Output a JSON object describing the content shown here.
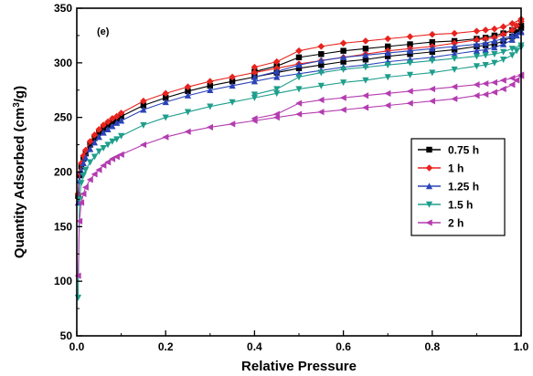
{
  "chart_data": {
    "type": "line",
    "annotation": "(e)",
    "xlabel": "Relative Pressure",
    "ylabel": "Quantity Adsorbed (cm³/g)",
    "ylabel_parts": {
      "main": "Quantity Adsorbed (cm",
      "sup": "3",
      "tail": "/g)"
    },
    "xlim": [
      0.0,
      1.0
    ],
    "ylim": [
      50,
      350
    ],
    "xticks": [
      0.0,
      0.2,
      0.4,
      0.6,
      0.8,
      1.0
    ],
    "xtick_labels": [
      "0.0",
      "0.2",
      "0.4",
      "0.6",
      "0.8",
      "1.0"
    ],
    "yticks": [
      50,
      100,
      150,
      200,
      250,
      300,
      350
    ],
    "ytick_labels": [
      "50",
      "100",
      "150",
      "200",
      "250",
      "300",
      "350"
    ],
    "grid": false,
    "legend_position": "right",
    "series": [
      {
        "name": "0.75 h",
        "color": "#000000",
        "marker": "square",
        "adsorption": [
          [
            0.003,
            178
          ],
          [
            0.006,
            197
          ],
          [
            0.01,
            205
          ],
          [
            0.015,
            212
          ],
          [
            0.02,
            217
          ],
          [
            0.03,
            225
          ],
          [
            0.04,
            231
          ],
          [
            0.05,
            236
          ],
          [
            0.06,
            240
          ],
          [
            0.07,
            243
          ],
          [
            0.08,
            246
          ],
          [
            0.09,
            248
          ],
          [
            0.1,
            251
          ],
          [
            0.15,
            261
          ],
          [
            0.2,
            268
          ],
          [
            0.25,
            274
          ],
          [
            0.3,
            279
          ],
          [
            0.35,
            283
          ],
          [
            0.4,
            287
          ],
          [
            0.45,
            291
          ],
          [
            0.5,
            295
          ],
          [
            0.55,
            298
          ],
          [
            0.6,
            301
          ],
          [
            0.65,
            303
          ],
          [
            0.7,
            306
          ],
          [
            0.75,
            308
          ],
          [
            0.8,
            310
          ],
          [
            0.85,
            312
          ],
          [
            0.9,
            315
          ],
          [
            0.92,
            316
          ],
          [
            0.94,
            317
          ],
          [
            0.96,
            320
          ],
          [
            0.98,
            324
          ],
          [
            0.99,
            328
          ],
          [
            1.0,
            332
          ]
        ],
        "desorption": [
          [
            1.0,
            334
          ],
          [
            0.98,
            330
          ],
          [
            0.96,
            327
          ],
          [
            0.94,
            325
          ],
          [
            0.92,
            323
          ],
          [
            0.9,
            322
          ],
          [
            0.85,
            320
          ],
          [
            0.8,
            319
          ],
          [
            0.75,
            317
          ],
          [
            0.7,
            315
          ],
          [
            0.65,
            313
          ],
          [
            0.6,
            311
          ],
          [
            0.55,
            308
          ],
          [
            0.5,
            305
          ],
          [
            0.45,
            297
          ],
          [
            0.4,
            292
          ]
        ]
      },
      {
        "name": "1 h",
        "color": "#e8231d",
        "marker": "diamond",
        "adsorption": [
          [
            0.003,
            180
          ],
          [
            0.006,
            199
          ],
          [
            0.01,
            208
          ],
          [
            0.015,
            215
          ],
          [
            0.02,
            220
          ],
          [
            0.03,
            228
          ],
          [
            0.04,
            234
          ],
          [
            0.05,
            239
          ],
          [
            0.06,
            243
          ],
          [
            0.07,
            246
          ],
          [
            0.08,
            249
          ],
          [
            0.09,
            251
          ],
          [
            0.1,
            254
          ],
          [
            0.15,
            265
          ],
          [
            0.2,
            272
          ],
          [
            0.25,
            278
          ],
          [
            0.3,
            283
          ],
          [
            0.35,
            287
          ],
          [
            0.4,
            291
          ],
          [
            0.45,
            295
          ],
          [
            0.5,
            299
          ],
          [
            0.55,
            302
          ],
          [
            0.6,
            305
          ],
          [
            0.65,
            308
          ],
          [
            0.7,
            311
          ],
          [
            0.75,
            313
          ],
          [
            0.8,
            315
          ],
          [
            0.85,
            318
          ],
          [
            0.9,
            321
          ],
          [
            0.92,
            322
          ],
          [
            0.94,
            323
          ],
          [
            0.96,
            326
          ],
          [
            0.98,
            330
          ],
          [
            0.99,
            334
          ],
          [
            1.0,
            338
          ]
        ],
        "desorption": [
          [
            1.0,
            340
          ],
          [
            0.98,
            336
          ],
          [
            0.96,
            333
          ],
          [
            0.94,
            331
          ],
          [
            0.92,
            330
          ],
          [
            0.9,
            329
          ],
          [
            0.85,
            327
          ],
          [
            0.8,
            326
          ],
          [
            0.75,
            324
          ],
          [
            0.7,
            322
          ],
          [
            0.65,
            320
          ],
          [
            0.6,
            318
          ],
          [
            0.55,
            315
          ],
          [
            0.5,
            311
          ],
          [
            0.45,
            301
          ],
          [
            0.4,
            296
          ]
        ]
      },
      {
        "name": "1.25 h",
        "color": "#2a43b8",
        "marker": "triangle-up",
        "adsorption": [
          [
            0.003,
            172
          ],
          [
            0.006,
            192
          ],
          [
            0.01,
            201
          ],
          [
            0.015,
            208
          ],
          [
            0.02,
            213
          ],
          [
            0.03,
            221
          ],
          [
            0.04,
            227
          ],
          [
            0.05,
            232
          ],
          [
            0.06,
            236
          ],
          [
            0.07,
            239
          ],
          [
            0.08,
            242
          ],
          [
            0.09,
            245
          ],
          [
            0.1,
            247
          ],
          [
            0.15,
            257
          ],
          [
            0.2,
            264
          ],
          [
            0.25,
            270
          ],
          [
            0.3,
            275
          ],
          [
            0.35,
            279
          ],
          [
            0.4,
            283
          ],
          [
            0.45,
            287
          ],
          [
            0.5,
            290
          ],
          [
            0.55,
            293
          ],
          [
            0.6,
            296
          ],
          [
            0.65,
            298
          ],
          [
            0.7,
            301
          ],
          [
            0.75,
            303
          ],
          [
            0.8,
            305
          ],
          [
            0.85,
            308
          ],
          [
            0.9,
            311
          ],
          [
            0.92,
            312
          ],
          [
            0.94,
            314
          ],
          [
            0.96,
            317
          ],
          [
            0.98,
            321
          ],
          [
            0.99,
            325
          ],
          [
            1.0,
            328
          ]
        ],
        "desorption": [
          [
            1.0,
            329
          ],
          [
            0.98,
            325
          ],
          [
            0.96,
            322
          ],
          [
            0.94,
            320
          ],
          [
            0.92,
            318
          ],
          [
            0.9,
            317
          ],
          [
            0.85,
            315
          ],
          [
            0.8,
            313
          ],
          [
            0.75,
            311
          ],
          [
            0.7,
            309
          ],
          [
            0.65,
            307
          ],
          [
            0.6,
            305
          ],
          [
            0.55,
            302
          ],
          [
            0.5,
            298
          ],
          [
            0.45,
            292
          ],
          [
            0.4,
            287
          ]
        ]
      },
      {
        "name": "1.5 h",
        "color": "#1e9e8c",
        "marker": "triangle-down",
        "adsorption": [
          [
            0.003,
            85
          ],
          [
            0.006,
            175
          ],
          [
            0.01,
            190
          ],
          [
            0.015,
            197
          ],
          [
            0.02,
            202
          ],
          [
            0.03,
            209
          ],
          [
            0.04,
            214
          ],
          [
            0.05,
            219
          ],
          [
            0.06,
            222
          ],
          [
            0.07,
            225
          ],
          [
            0.08,
            228
          ],
          [
            0.09,
            230
          ],
          [
            0.1,
            233
          ],
          [
            0.15,
            243
          ],
          [
            0.2,
            250
          ],
          [
            0.25,
            255
          ],
          [
            0.3,
            260
          ],
          [
            0.35,
            264
          ],
          [
            0.4,
            268
          ],
          [
            0.45,
            272
          ],
          [
            0.5,
            276
          ],
          [
            0.55,
            279
          ],
          [
            0.6,
            282
          ],
          [
            0.65,
            284
          ],
          [
            0.7,
            287
          ],
          [
            0.75,
            289
          ],
          [
            0.8,
            291
          ],
          [
            0.85,
            294
          ],
          [
            0.9,
            297
          ],
          [
            0.92,
            298
          ],
          [
            0.94,
            300
          ],
          [
            0.96,
            303
          ],
          [
            0.98,
            307
          ],
          [
            0.99,
            311
          ],
          [
            1.0,
            314
          ]
        ],
        "desorption": [
          [
            1.0,
            316
          ],
          [
            0.98,
            313
          ],
          [
            0.96,
            310
          ],
          [
            0.94,
            308
          ],
          [
            0.92,
            307
          ],
          [
            0.9,
            306
          ],
          [
            0.85,
            304
          ],
          [
            0.8,
            302
          ],
          [
            0.75,
            300
          ],
          [
            0.7,
            298
          ],
          [
            0.65,
            296
          ],
          [
            0.6,
            294
          ],
          [
            0.55,
            291
          ],
          [
            0.5,
            287
          ],
          [
            0.45,
            276
          ],
          [
            0.4,
            271
          ]
        ]
      },
      {
        "name": "2 h",
        "color": "#b43cb0",
        "marker": "triangle-left",
        "adsorption": [
          [
            0.003,
            105
          ],
          [
            0.006,
            155
          ],
          [
            0.01,
            172
          ],
          [
            0.015,
            180
          ],
          [
            0.02,
            186
          ],
          [
            0.03,
            193
          ],
          [
            0.04,
            198
          ],
          [
            0.05,
            202
          ],
          [
            0.06,
            206
          ],
          [
            0.07,
            209
          ],
          [
            0.08,
            212
          ],
          [
            0.09,
            214
          ],
          [
            0.1,
            216
          ],
          [
            0.15,
            225
          ],
          [
            0.2,
            232
          ],
          [
            0.25,
            237
          ],
          [
            0.3,
            241
          ],
          [
            0.35,
            244
          ],
          [
            0.4,
            247
          ],
          [
            0.45,
            250
          ],
          [
            0.5,
            253
          ],
          [
            0.55,
            255
          ],
          [
            0.6,
            257
          ],
          [
            0.65,
            259
          ],
          [
            0.7,
            261
          ],
          [
            0.75,
            263
          ],
          [
            0.8,
            265
          ],
          [
            0.85,
            267
          ],
          [
            0.9,
            270
          ],
          [
            0.92,
            271
          ],
          [
            0.94,
            273
          ],
          [
            0.96,
            276
          ],
          [
            0.98,
            280
          ],
          [
            0.99,
            284
          ],
          [
            1.0,
            288
          ]
        ],
        "desorption": [
          [
            1.0,
            289
          ],
          [
            0.98,
            286
          ],
          [
            0.96,
            284
          ],
          [
            0.94,
            282
          ],
          [
            0.92,
            281
          ],
          [
            0.9,
            280
          ],
          [
            0.85,
            278
          ],
          [
            0.8,
            276
          ],
          [
            0.75,
            274
          ],
          [
            0.7,
            272
          ],
          [
            0.65,
            270
          ],
          [
            0.6,
            268
          ],
          [
            0.55,
            266
          ],
          [
            0.5,
            263
          ],
          [
            0.45,
            253
          ],
          [
            0.4,
            249
          ]
        ]
      }
    ]
  }
}
